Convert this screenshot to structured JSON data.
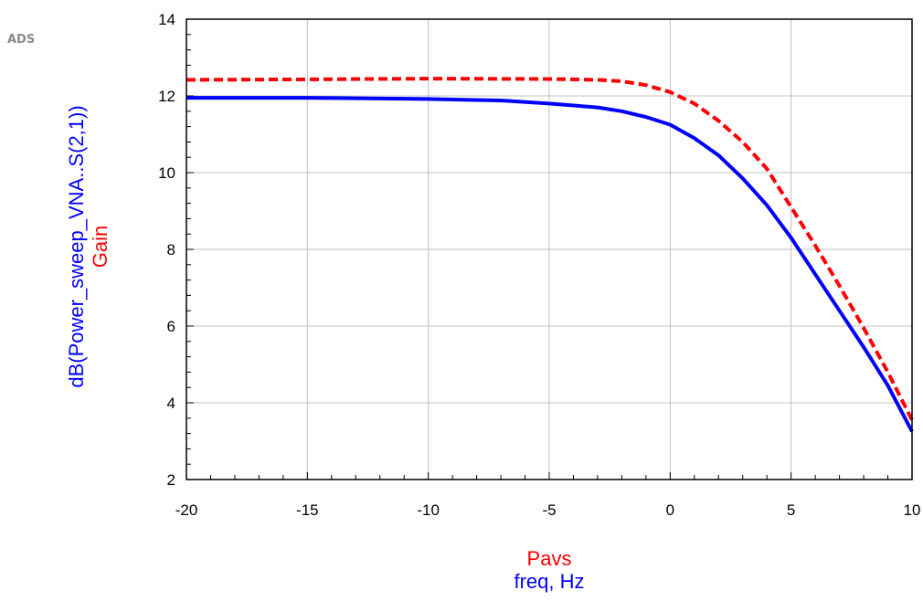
{
  "app_label": "ADS",
  "chart_data": {
    "type": "line",
    "title": "",
    "xlabel_lines": [
      {
        "text": "Pavs",
        "color": "#ff0000"
      },
      {
        "text": "freq, Hz",
        "color": "#0000ff"
      }
    ],
    "ylabel_lines": [
      {
        "text": "dB(Power_sweep_VNA..S(2,1))",
        "color": "#0000ff"
      },
      {
        "text": "Gain",
        "color": "#ff0000"
      }
    ],
    "xlim": [
      -20,
      10
    ],
    "ylim": [
      2,
      14
    ],
    "x_ticks": [
      -20,
      -15,
      -10,
      -5,
      0,
      5,
      10
    ],
    "y_ticks": [
      2,
      4,
      6,
      8,
      10,
      12,
      14
    ],
    "grid": true,
    "series": [
      {
        "color": "#ff0000",
        "style": "dashed",
        "points": [
          [
            -20,
            12.42
          ],
          [
            -15,
            12.43
          ],
          [
            -10,
            12.45
          ],
          [
            -5,
            12.44
          ],
          [
            -3,
            12.42
          ],
          [
            -2,
            12.38
          ],
          [
            -1,
            12.28
          ],
          [
            0,
            12.1
          ],
          [
            1,
            11.8
          ],
          [
            2,
            11.35
          ],
          [
            3,
            10.8
          ],
          [
            4,
            10.1
          ],
          [
            5,
            9.1
          ],
          [
            6,
            8.1
          ],
          [
            7,
            7.05
          ],
          [
            8,
            5.95
          ],
          [
            9,
            4.8
          ],
          [
            10,
            3.55
          ]
        ]
      },
      {
        "color": "#0000ff",
        "style": "solid",
        "points": [
          [
            -20,
            11.95
          ],
          [
            -15,
            11.95
          ],
          [
            -10,
            11.92
          ],
          [
            -7,
            11.88
          ],
          [
            -5,
            11.8
          ],
          [
            -3,
            11.7
          ],
          [
            -2,
            11.6
          ],
          [
            -1,
            11.45
          ],
          [
            0,
            11.25
          ],
          [
            1,
            10.9
          ],
          [
            2,
            10.45
          ],
          [
            3,
            9.85
          ],
          [
            4,
            9.15
          ],
          [
            5,
            8.3
          ],
          [
            6,
            7.35
          ],
          [
            7,
            6.4
          ],
          [
            8,
            5.45
          ],
          [
            9,
            4.45
          ],
          [
            10,
            3.25
          ]
        ]
      }
    ]
  }
}
